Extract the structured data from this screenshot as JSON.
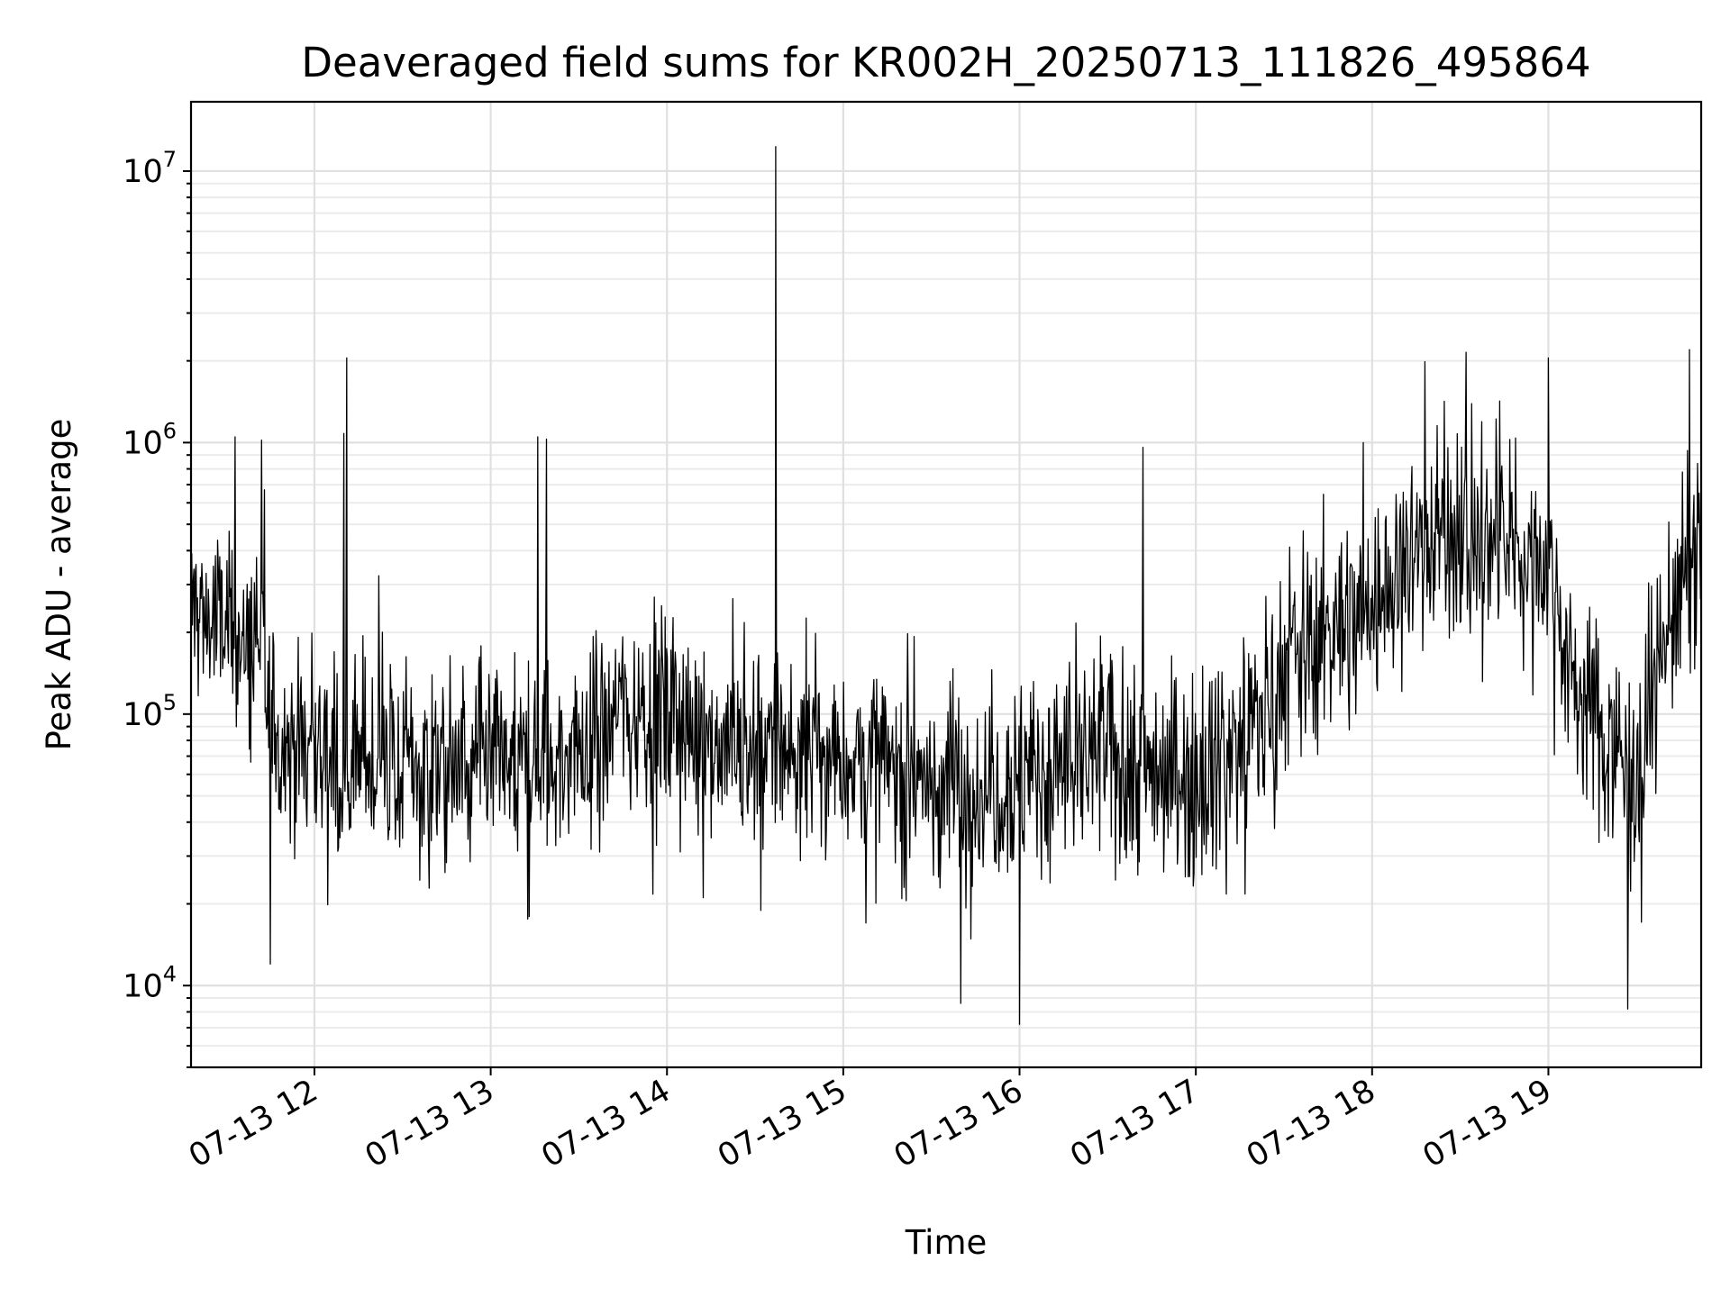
{
  "chart_data": {
    "type": "line",
    "title": "Deaveraged field sums for KR002H_20250713_111826_495864",
    "xlabel": "Time",
    "ylabel": "Peak ADU - average",
    "x_scale": "time",
    "y_scale": "log",
    "xlim": [
      "2025-07-13 11:18",
      "2025-07-13 19:52"
    ],
    "ylim": [
      5000,
      18000000
    ],
    "x_ticks": [
      "07-13 12",
      "07-13 13",
      "07-13 14",
      "07-13 15",
      "07-13 16",
      "07-13 17",
      "07-13 18",
      "07-13 19"
    ],
    "y_ticks": [
      10000,
      100000,
      1000000,
      10000000
    ],
    "y_tick_labels": [
      {
        "base": "10",
        "exp": "4"
      },
      {
        "base": "10",
        "exp": "5"
      },
      {
        "base": "10",
        "exp": "6"
      },
      {
        "base": "10",
        "exp": "7"
      }
    ],
    "grid": true,
    "line_color": "#000000",
    "envelope": [
      {
        "t": "11:18",
        "median": 250000
      },
      {
        "t": "11:30",
        "median": 200000
      },
      {
        "t": "11:40",
        "median": 160000
      },
      {
        "t": "11:48",
        "median": 80000
      },
      {
        "t": "12:00",
        "median": 75000
      },
      {
        "t": "12:20",
        "median": 65000
      },
      {
        "t": "13:00",
        "median": 60000
      },
      {
        "t": "13:30",
        "median": 70000
      },
      {
        "t": "13:45",
        "median": 110000
      },
      {
        "t": "14:00",
        "median": 95000
      },
      {
        "t": "14:30",
        "median": 75000
      },
      {
        "t": "15:00",
        "median": 70000
      },
      {
        "t": "15:30",
        "median": 55000
      },
      {
        "t": "16:00",
        "median": 58000
      },
      {
        "t": "16:30",
        "median": 70000
      },
      {
        "t": "17:00",
        "median": 60000
      },
      {
        "t": "17:20",
        "median": 90000
      },
      {
        "t": "17:35",
        "median": 170000
      },
      {
        "t": "18:00",
        "median": 250000
      },
      {
        "t": "18:20",
        "median": 480000
      },
      {
        "t": "18:40",
        "median": 420000
      },
      {
        "t": "19:00",
        "median": 380000
      },
      {
        "t": "19:08",
        "median": 130000
      },
      {
        "t": "19:30",
        "median": 60000
      },
      {
        "t": "19:40",
        "median": 200000
      },
      {
        "t": "19:52",
        "median": 420000
      }
    ],
    "peaks": [
      {
        "t": "11:33",
        "y": 1050000
      },
      {
        "t": "11:43",
        "y": 670000
      },
      {
        "t": "12:11",
        "y": 2050000
      },
      {
        "t": "12:10",
        "y": 1080000
      },
      {
        "t": "13:16",
        "y": 1050000
      },
      {
        "t": "13:19",
        "y": 1030000
      },
      {
        "t": "14:37",
        "y": 12300000
      },
      {
        "t": "16:42",
        "y": 960000
      },
      {
        "t": "17:57",
        "y": 1000000
      },
      {
        "t": "18:32",
        "y": 2150000
      },
      {
        "t": "19:00",
        "y": 2050000
      },
      {
        "t": "19:48",
        "y": 2200000
      }
    ],
    "troughs": [
      {
        "t": "11:45",
        "y": 12000
      },
      {
        "t": "15:40",
        "y": 8600
      },
      {
        "t": "16:00",
        "y": 7200
      },
      {
        "t": "19:27",
        "y": 8200
      }
    ]
  }
}
